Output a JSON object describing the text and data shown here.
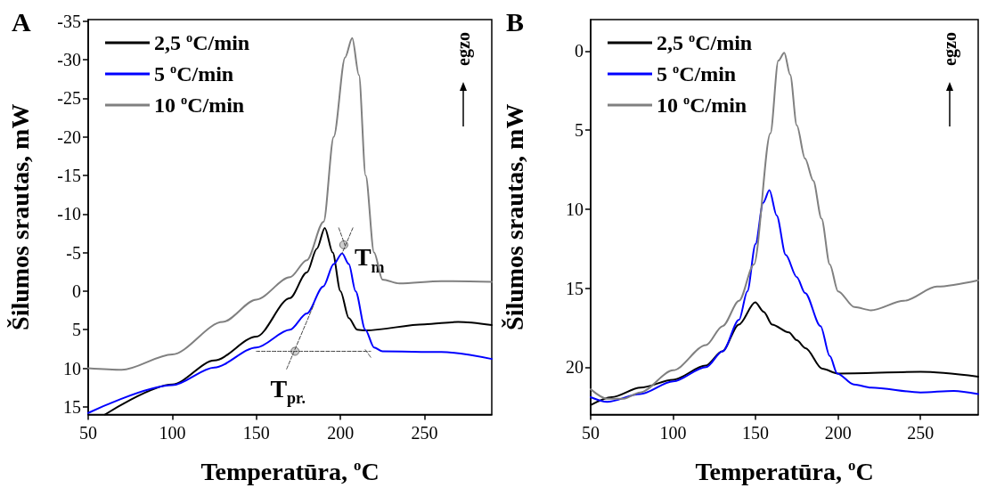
{
  "chart_data": [
    {
      "type": "line",
      "title": "A",
      "xlabel": "Temperatūra, $^{o}$C",
      "ylabel": "Šilumos srautas, mW",
      "xlim": [
        50,
        290
      ],
      "ylim": [
        16,
        -35.2
      ],
      "xticks": [
        50,
        100,
        150,
        200,
        250
      ],
      "yticks": [
        -35,
        -30,
        -25,
        -20,
        -15,
        -10,
        -5,
        0,
        5,
        10,
        15
      ],
      "grid": false,
      "legend": "top left",
      "marker": "none",
      "annotations": [
        {
          "text": "T$_{m}$",
          "x": 202,
          "y": -6
        },
        {
          "text": "T$_{pr.}$",
          "x": 173,
          "y": 7.8
        },
        "egzo"
      ],
      "series": [
        {
          "name": "2,5 $^{o}$C/min",
          "color": "#000000",
          "x": [
            60,
            100,
            125,
            150,
            170,
            180,
            186,
            190.7,
            195.4,
            200,
            205,
            210,
            215,
            250,
            270,
            290
          ],
          "values": [
            16,
            12.1,
            9,
            5.9,
            0.9,
            -2.4,
            -5.5,
            -8.2,
            -5,
            0,
            3.5,
            5,
            5.1,
            4.3,
            4.0,
            4.4
          ]
        },
        {
          "name": "5 $^{o}$C/min",
          "color": "#0000ff",
          "x": [
            50,
            100,
            125,
            150,
            170,
            180,
            189.8,
            196,
            201,
            205,
            209,
            214.8,
            220,
            225,
            260,
            290
          ],
          "values": [
            15.8,
            12.2,
            9.9,
            7.3,
            5,
            2.9,
            -0.6,
            -3.5,
            -4.9,
            -3.5,
            0,
            5,
            7.3,
            7.8,
            7.9,
            8.8
          ]
        },
        {
          "name": "10 $^{o}$C/min",
          "color": "#808080",
          "x": [
            50,
            70,
            100,
            130,
            150,
            170,
            180,
            190,
            196,
            202.8,
            207,
            211,
            215,
            220,
            225,
            235,
            260,
            290
          ],
          "values": [
            10,
            10.2,
            8.2,
            4,
            1.1,
            -1.8,
            -4,
            -9,
            -20,
            -30.3,
            -32.8,
            -28,
            -15,
            -5,
            -1.5,
            -1,
            -1.3,
            -1.2
          ]
        },
        {
          "type": "line",
          "color": "#404040",
          "line_style": "dashed",
          "x": [
            150,
            218
          ],
          "values": [
            7.8,
            7.8
          ]
        },
        {
          "type": "line",
          "color": "#404040",
          "line_style": "dashed",
          "x": [
            168,
            184.3
          ],
          "values": [
            10.1,
            1.7
          ]
        },
        {
          "type": "line",
          "color": "#404040",
          "line_style": "dashed",
          "x": [
            214.8,
            218.1
          ],
          "values": [
            7.6,
            8.6
          ]
        },
        {
          "type": "line",
          "color": "#404040",
          "line_style": "dashed",
          "x": [
            199,
            202.8
          ],
          "values": [
            -8.2,
            -5.9
          ]
        },
        {
          "type": "line",
          "color": "#404040",
          "line_style": "dashed",
          "x": [
            207.4,
            201
          ],
          "values": [
            -8.2,
            -4.9
          ]
        },
        {
          "type": "scatter",
          "color": "#c0c0c0",
          "marker": "circle",
          "x": [
            173,
            202
          ],
          "values": [
            7.8,
            -6
          ]
        }
      ]
    },
    {
      "type": "line",
      "title": "B",
      "xlabel": "Temperatūra, $^{o}$C",
      "ylabel": "Šilumos srautas, mW",
      "xlim": [
        50,
        285
      ],
      "ylim": [
        23,
        -2
      ],
      "xticks": [
        50,
        100,
        150,
        200,
        250
      ],
      "yticks": [
        0,
        5,
        10,
        15,
        20
      ],
      "grid": false,
      "legend": "top left",
      "marker": "none",
      "annotations": [
        "egzo"
      ],
      "series": [
        {
          "name": "2,5 $^{o}$C/min",
          "color": "#000000",
          "x": [
            50,
            62.8,
            80.3,
            100,
            119.7,
            129.8,
            139.9,
            149.8,
            155,
            160,
            170.2,
            175,
            180.3,
            190.4,
            200,
            250,
            285
          ],
          "values": [
            22.4,
            21.9,
            21.3,
            20.8,
            19.9,
            19,
            17.3,
            15.9,
            16.5,
            17.3,
            17.8,
            18.3,
            18.8,
            20.1,
            20.4,
            20.3,
            20.6
          ]
        },
        {
          "name": "5 $^{o}$C/min",
          "color": "#0000ff",
          "x": [
            50,
            60,
            80,
            100,
            120,
            130,
            140,
            145,
            150,
            154.6,
            158.4,
            162.8,
            168.3,
            175,
            180,
            189.4,
            195,
            199.5,
            209.6,
            220,
            250,
            270.2,
            285
          ],
          "values": [
            21.9,
            22.2,
            21.7,
            20.9,
            20,
            19,
            17,
            15.2,
            12.2,
            9.6,
            8.8,
            10.4,
            12.9,
            14.3,
            15.3,
            17.4,
            19.3,
            20.4,
            21.1,
            21.3,
            21.6,
            21.5,
            21.7
          ]
        },
        {
          "name": "10 $^{o}$C/min",
          "color": "#808080",
          "x": [
            50,
            60,
            70,
            80,
            100,
            120,
            130,
            140,
            149,
            159,
            163.8,
            167.4,
            171,
            175,
            180,
            185,
            190,
            195,
            200,
            210,
            220,
            240,
            260,
            285
          ],
          "values": [
            21.4,
            22,
            22,
            21.6,
            20.2,
            18.6,
            17.4,
            15.8,
            13.5,
            5.2,
            0.6,
            0.1,
            1.5,
            4.7,
            6.8,
            8.2,
            10.6,
            13.5,
            15.2,
            16.2,
            16.4,
            15.8,
            14.9,
            14.5
          ]
        }
      ]
    }
  ]
}
